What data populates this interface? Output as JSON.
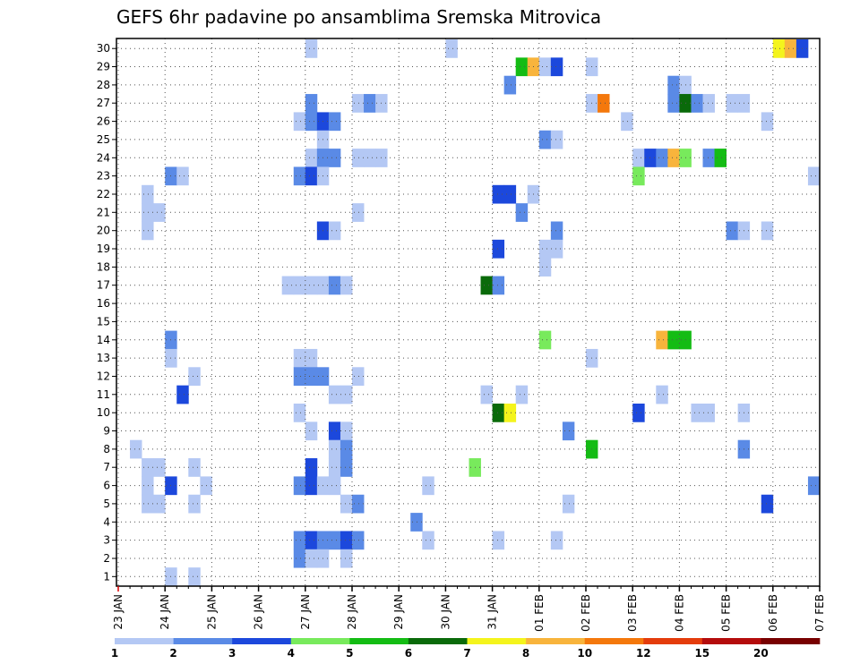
{
  "chart_data": {
    "type": "heatmap",
    "title": "GEFS 6hr padavine po ansamblima Sremska Mitrovica",
    "xlabel": "",
    "ylabel": "",
    "x_ticks": [
      "23 JAN",
      "24 JAN",
      "25 JAN",
      "26 JAN",
      "27 JAN",
      "28 JAN",
      "29 JAN",
      "30 JAN",
      "31 JAN",
      "01 FEB",
      "02 FEB",
      "03 FEB",
      "04 FEB",
      "05 FEB",
      "06 FEB",
      "07 FEB"
    ],
    "x_range_days": [
      0,
      15
    ],
    "y_members": [
      1,
      2,
      3,
      4,
      5,
      6,
      7,
      8,
      9,
      10,
      11,
      12,
      13,
      14,
      15,
      16,
      17,
      18,
      19,
      20,
      21,
      22,
      23,
      24,
      25,
      26,
      27,
      28,
      29,
      30
    ],
    "grid": true,
    "colorbar": {
      "labels": [
        "1",
        "2",
        "3",
        "4",
        "5",
        "6",
        "7",
        "8",
        "10",
        "12",
        "15",
        "20"
      ],
      "colors": [
        "#b4c8f4",
        "#5a8ae6",
        "#1c48dc",
        "#78ea5c",
        "#14bc14",
        "#0a6a0a",
        "#f4f41c",
        "#f8b43c",
        "#f4780c",
        "#e43c0c",
        "#b40c0c",
        "#780000"
      ]
    },
    "cells": [
      {
        "member": 30,
        "day": 4.0,
        "level": 1
      },
      {
        "member": 30,
        "day": 7.0,
        "level": 1
      },
      {
        "member": 30,
        "day": 14.0,
        "level": 7
      },
      {
        "member": 30,
        "day": 14.25,
        "level": 8
      },
      {
        "member": 30,
        "day": 14.5,
        "level": 3
      },
      {
        "member": 29,
        "day": 8.5,
        "level": 5
      },
      {
        "member": 29,
        "day": 8.75,
        "level": 8
      },
      {
        "member": 29,
        "day": 9.0,
        "level": 1
      },
      {
        "member": 29,
        "day": 9.25,
        "level": 3
      },
      {
        "member": 29,
        "day": 10.0,
        "level": 1
      },
      {
        "member": 28,
        "day": 8.25,
        "level": 2
      },
      {
        "member": 28,
        "day": 11.75,
        "level": 2
      },
      {
        "member": 28,
        "day": 12.0,
        "level": 1
      },
      {
        "member": 27,
        "day": 4.0,
        "level": 2
      },
      {
        "member": 27,
        "day": 5.0,
        "level": 1
      },
      {
        "member": 27,
        "day": 5.25,
        "level": 2
      },
      {
        "member": 27,
        "day": 5.5,
        "level": 1
      },
      {
        "member": 27,
        "day": 10.0,
        "level": 1
      },
      {
        "member": 27,
        "day": 10.25,
        "level": 9
      },
      {
        "member": 27,
        "day": 11.75,
        "level": 2
      },
      {
        "member": 27,
        "day": 12.0,
        "level": 6
      },
      {
        "member": 27,
        "day": 12.25,
        "level": 2
      },
      {
        "member": 27,
        "day": 12.5,
        "level": 1
      },
      {
        "member": 27,
        "day": 13.0,
        "level": 1
      },
      {
        "member": 27,
        "day": 13.25,
        "level": 1
      },
      {
        "member": 26,
        "day": 3.75,
        "level": 1
      },
      {
        "member": 26,
        "day": 4.0,
        "level": 2
      },
      {
        "member": 26,
        "day": 4.25,
        "level": 3
      },
      {
        "member": 26,
        "day": 4.5,
        "level": 2
      },
      {
        "member": 26,
        "day": 10.75,
        "level": 1
      },
      {
        "member": 26,
        "day": 13.75,
        "level": 1
      },
      {
        "member": 25,
        "day": 4.25,
        "level": 1
      },
      {
        "member": 25,
        "day": 9.0,
        "level": 2
      },
      {
        "member": 25,
        "day": 9.25,
        "level": 1
      },
      {
        "member": 24,
        "day": 4.0,
        "level": 1
      },
      {
        "member": 24,
        "day": 4.25,
        "level": 2
      },
      {
        "member": 24,
        "day": 4.5,
        "level": 2
      },
      {
        "member": 24,
        "day": 5.0,
        "level": 1
      },
      {
        "member": 24,
        "day": 5.25,
        "level": 1
      },
      {
        "member": 24,
        "day": 5.5,
        "level": 1
      },
      {
        "member": 24,
        "day": 11.0,
        "level": 1
      },
      {
        "member": 24,
        "day": 11.25,
        "level": 3
      },
      {
        "member": 24,
        "day": 11.5,
        "level": 2
      },
      {
        "member": 24,
        "day": 11.75,
        "level": 8
      },
      {
        "member": 24,
        "day": 12.0,
        "level": 4
      },
      {
        "member": 24,
        "day": 12.5,
        "level": 2
      },
      {
        "member": 24,
        "day": 12.75,
        "level": 5
      },
      {
        "member": 23,
        "day": 1.0,
        "level": 2
      },
      {
        "member": 23,
        "day": 1.25,
        "level": 1
      },
      {
        "member": 23,
        "day": 3.75,
        "level": 2
      },
      {
        "member": 23,
        "day": 4.0,
        "level": 3
      },
      {
        "member": 23,
        "day": 4.25,
        "level": 1
      },
      {
        "member": 23,
        "day": 11.0,
        "level": 4
      },
      {
        "member": 23,
        "day": 14.75,
        "level": 1
      },
      {
        "member": 22,
        "day": 0.5,
        "level": 1
      },
      {
        "member": 22,
        "day": 8.0,
        "level": 3
      },
      {
        "member": 22,
        "day": 8.25,
        "level": 3
      },
      {
        "member": 22,
        "day": 8.75,
        "level": 1
      },
      {
        "member": 21,
        "day": 0.5,
        "level": 1
      },
      {
        "member": 21,
        "day": 0.75,
        "level": 1
      },
      {
        "member": 21,
        "day": 5.0,
        "level": 1
      },
      {
        "member": 21,
        "day": 8.5,
        "level": 2
      },
      {
        "member": 20,
        "day": 0.5,
        "level": 1
      },
      {
        "member": 20,
        "day": 4.25,
        "level": 3
      },
      {
        "member": 20,
        "day": 4.5,
        "level": 1
      },
      {
        "member": 20,
        "day": 9.25,
        "level": 2
      },
      {
        "member": 20,
        "day": 13.0,
        "level": 2
      },
      {
        "member": 20,
        "day": 13.25,
        "level": 1
      },
      {
        "member": 20,
        "day": 13.75,
        "level": 1
      },
      {
        "member": 19,
        "day": 8.0,
        "level": 3
      },
      {
        "member": 19,
        "day": 9.0,
        "level": 1
      },
      {
        "member": 19,
        "day": 9.25,
        "level": 1
      },
      {
        "member": 18,
        "day": 9.0,
        "level": 1
      },
      {
        "member": 17,
        "day": 3.5,
        "level": 1
      },
      {
        "member": 17,
        "day": 3.75,
        "level": 1
      },
      {
        "member": 17,
        "day": 4.0,
        "level": 1
      },
      {
        "member": 17,
        "day": 4.25,
        "level": 1
      },
      {
        "member": 17,
        "day": 4.5,
        "level": 2
      },
      {
        "member": 17,
        "day": 4.75,
        "level": 1
      },
      {
        "member": 17,
        "day": 7.75,
        "level": 6
      },
      {
        "member": 17,
        "day": 8.0,
        "level": 2
      },
      {
        "member": 14,
        "day": 1.0,
        "level": 2
      },
      {
        "member": 14,
        "day": 9.0,
        "level": 4
      },
      {
        "member": 14,
        "day": 11.5,
        "level": 8
      },
      {
        "member": 14,
        "day": 11.75,
        "level": 5
      },
      {
        "member": 14,
        "day": 12.0,
        "level": 5
      },
      {
        "member": 13,
        "day": 1.0,
        "level": 1
      },
      {
        "member": 13,
        "day": 3.75,
        "level": 1
      },
      {
        "member": 13,
        "day": 4.0,
        "level": 1
      },
      {
        "member": 13,
        "day": 10.0,
        "level": 1
      },
      {
        "member": 12,
        "day": 1.5,
        "level": 1
      },
      {
        "member": 12,
        "day": 3.75,
        "level": 2
      },
      {
        "member": 12,
        "day": 4.0,
        "level": 2
      },
      {
        "member": 12,
        "day": 4.25,
        "level": 2
      },
      {
        "member": 12,
        "day": 5.0,
        "level": 1
      },
      {
        "member": 11,
        "day": 1.25,
        "level": 3
      },
      {
        "member": 11,
        "day": 4.5,
        "level": 1
      },
      {
        "member": 11,
        "day": 4.75,
        "level": 1
      },
      {
        "member": 11,
        "day": 7.75,
        "level": 1
      },
      {
        "member": 11,
        "day": 8.5,
        "level": 1
      },
      {
        "member": 11,
        "day": 11.5,
        "level": 1
      },
      {
        "member": 10,
        "day": 3.75,
        "level": 1
      },
      {
        "member": 10,
        "day": 8.0,
        "level": 6
      },
      {
        "member": 10,
        "day": 8.25,
        "level": 7
      },
      {
        "member": 10,
        "day": 11.0,
        "level": 3
      },
      {
        "member": 10,
        "day": 12.25,
        "level": 1
      },
      {
        "member": 10,
        "day": 12.5,
        "level": 1
      },
      {
        "member": 10,
        "day": 13.25,
        "level": 1
      },
      {
        "member": 9,
        "day": 4.0,
        "level": 1
      },
      {
        "member": 9,
        "day": 4.5,
        "level": 3
      },
      {
        "member": 9,
        "day": 4.75,
        "level": 1
      },
      {
        "member": 9,
        "day": 9.5,
        "level": 2
      },
      {
        "member": 8,
        "day": 0.25,
        "level": 1
      },
      {
        "member": 8,
        "day": 4.5,
        "level": 1
      },
      {
        "member": 8,
        "day": 4.75,
        "level": 2
      },
      {
        "member": 8,
        "day": 10.0,
        "level": 5
      },
      {
        "member": 8,
        "day": 13.25,
        "level": 2
      },
      {
        "member": 7,
        "day": 0.5,
        "level": 1
      },
      {
        "member": 7,
        "day": 0.75,
        "level": 1
      },
      {
        "member": 7,
        "day": 1.5,
        "level": 1
      },
      {
        "member": 7,
        "day": 4.0,
        "level": 3
      },
      {
        "member": 7,
        "day": 4.5,
        "level": 1
      },
      {
        "member": 7,
        "day": 4.75,
        "level": 2
      },
      {
        "member": 7,
        "day": 7.5,
        "level": 4
      },
      {
        "member": 6,
        "day": 0.5,
        "level": 1
      },
      {
        "member": 6,
        "day": 1.0,
        "level": 3
      },
      {
        "member": 6,
        "day": 1.75,
        "level": 1
      },
      {
        "member": 6,
        "day": 3.75,
        "level": 2
      },
      {
        "member": 6,
        "day": 4.0,
        "level": 3
      },
      {
        "member": 6,
        "day": 4.25,
        "level": 1
      },
      {
        "member": 6,
        "day": 4.5,
        "level": 1
      },
      {
        "member": 6,
        "day": 6.5,
        "level": 1
      },
      {
        "member": 6,
        "day": 14.75,
        "level": 2
      },
      {
        "member": 5,
        "day": 0.5,
        "level": 1
      },
      {
        "member": 5,
        "day": 0.75,
        "level": 1
      },
      {
        "member": 5,
        "day": 1.5,
        "level": 1
      },
      {
        "member": 5,
        "day": 4.75,
        "level": 1
      },
      {
        "member": 5,
        "day": 5.0,
        "level": 2
      },
      {
        "member": 5,
        "day": 9.5,
        "level": 1
      },
      {
        "member": 5,
        "day": 13.75,
        "level": 3
      },
      {
        "member": 4,
        "day": 6.25,
        "level": 2
      },
      {
        "member": 3,
        "day": 3.75,
        "level": 2
      },
      {
        "member": 3,
        "day": 4.0,
        "level": 3
      },
      {
        "member": 3,
        "day": 4.25,
        "level": 2
      },
      {
        "member": 3,
        "day": 4.5,
        "level": 2
      },
      {
        "member": 3,
        "day": 4.75,
        "level": 3
      },
      {
        "member": 3,
        "day": 5.0,
        "level": 2
      },
      {
        "member": 3,
        "day": 6.5,
        "level": 1
      },
      {
        "member": 3,
        "day": 8.0,
        "level": 1
      },
      {
        "member": 3,
        "day": 9.25,
        "level": 1
      },
      {
        "member": 2,
        "day": 3.75,
        "level": 2
      },
      {
        "member": 2,
        "day": 4.0,
        "level": 1
      },
      {
        "member": 2,
        "day": 4.25,
        "level": 1
      },
      {
        "member": 2,
        "day": 4.75,
        "level": 1
      },
      {
        "member": 1,
        "day": 1.0,
        "level": 1
      },
      {
        "member": 1,
        "day": 1.5,
        "level": 1
      }
    ]
  }
}
